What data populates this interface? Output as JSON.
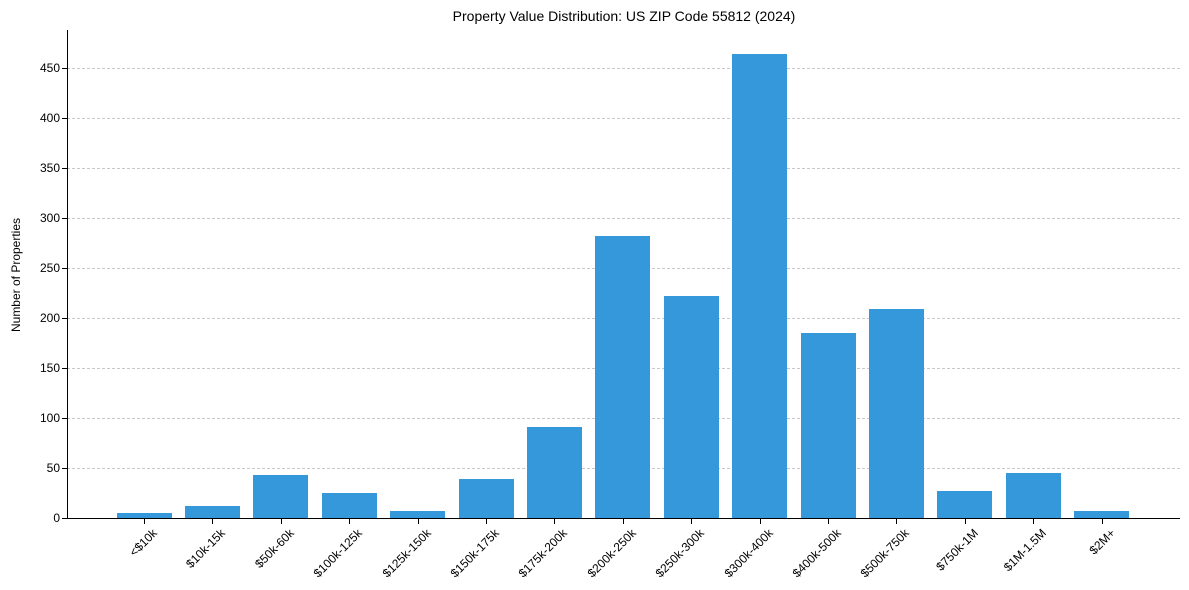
{
  "chart_data": {
    "type": "bar",
    "title": "Property Value Distribution: US ZIP Code 55812 (2024)",
    "xlabel": "",
    "ylabel": "Number of Properties",
    "categories": [
      "<$10k",
      "$10k-15k",
      "$50k-60k",
      "$100k-125k",
      "$125k-150k",
      "$150k-175k",
      "$175k-200k",
      "$200k-250k",
      "$250k-300k",
      "$300k-400k",
      "$400k-500k",
      "$500k-750k",
      "$750k-1M",
      "$1M-1.5M",
      "$2M+"
    ],
    "values": [
      5,
      12,
      43,
      25,
      7,
      39,
      91,
      282,
      222,
      464,
      185,
      209,
      27,
      45,
      7
    ],
    "ylim": [
      0,
      488
    ],
    "yticks": [
      0,
      50,
      100,
      150,
      200,
      250,
      300,
      350,
      400,
      450
    ],
    "grid": "y, dashed",
    "legend": null,
    "bar_color": "#3498db"
  }
}
